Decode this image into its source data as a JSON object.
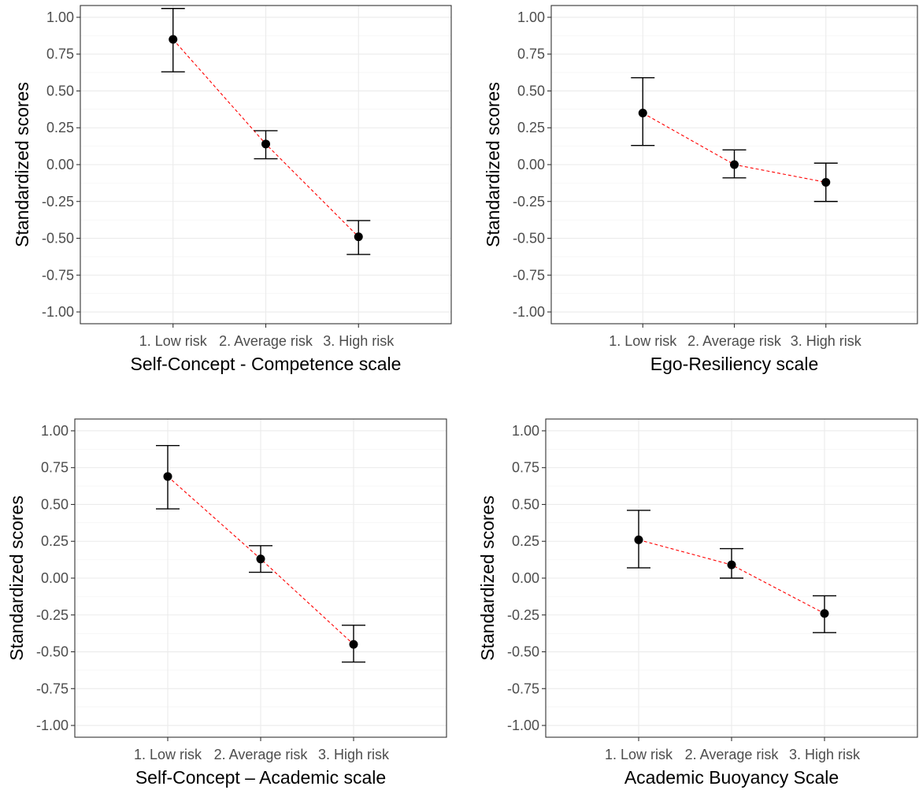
{
  "chart_data": [
    {
      "type": "scatter",
      "xlabel": "Self-Concept - Competence scale",
      "ylabel": "Standardized scores",
      "categories": [
        "1. Low risk",
        "2. Average risk",
        "3. High risk"
      ],
      "yticks": [
        "1.00",
        "0.75",
        "0.50",
        "0.25",
        "0.00",
        "-0.25",
        "-0.50",
        "-0.75",
        "-1.00"
      ],
      "ylim": [
        -1.08,
        1.08
      ],
      "grid": true,
      "connector": "dashed",
      "means": [
        0.85,
        0.14,
        -0.49
      ],
      "lower": [
        0.63,
        0.04,
        -0.61
      ],
      "upper": [
        1.06,
        0.23,
        -0.38
      ]
    },
    {
      "type": "scatter",
      "xlabel": "Ego-Resiliency scale",
      "ylabel": "Standardized scores",
      "categories": [
        "1. Low risk",
        "2. Average risk",
        "3. High risk"
      ],
      "yticks": [
        "1.00",
        "0.75",
        "0.50",
        "0.25",
        "0.00",
        "-0.25",
        "-0.50",
        "-0.75",
        "-1.00"
      ],
      "ylim": [
        -1.08,
        1.08
      ],
      "grid": true,
      "connector": "dashed",
      "means": [
        0.35,
        0.0,
        -0.12
      ],
      "lower": [
        0.13,
        -0.09,
        -0.25
      ],
      "upper": [
        0.59,
        0.1,
        0.01
      ]
    },
    {
      "type": "scatter",
      "xlabel": "Self-Concept – Academic scale",
      "ylabel": "Standardized scores",
      "categories": [
        "1. Low risk",
        "2. Average risk",
        "3. High risk"
      ],
      "yticks": [
        "1.00",
        "0.75",
        "0.50",
        "0.25",
        "0.00",
        "-0.25",
        "-0.50",
        "-0.75",
        "-1.00"
      ],
      "ylim": [
        -1.08,
        1.08
      ],
      "grid": true,
      "connector": "dashed",
      "means": [
        0.69,
        0.13,
        -0.45
      ],
      "lower": [
        0.47,
        0.04,
        -0.57
      ],
      "upper": [
        0.9,
        0.22,
        -0.32
      ]
    },
    {
      "type": "scatter",
      "xlabel": "Academic Buoyancy Scale",
      "ylabel": "Standardized scores",
      "categories": [
        "1. Low risk",
        "2. Average risk",
        "3. High risk"
      ],
      "yticks": [
        "1.00",
        "0.75",
        "0.50",
        "0.25",
        "0.00",
        "-0.25",
        "-0.50",
        "-0.75",
        "-1.00"
      ],
      "ylim": [
        -1.08,
        1.08
      ],
      "grid": true,
      "connector": "dashed",
      "means": [
        0.26,
        0.09,
        -0.24
      ],
      "lower": [
        0.07,
        0.0,
        -0.37
      ],
      "upper": [
        0.46,
        0.2,
        -0.12
      ]
    }
  ],
  "colors": {
    "connector": "#ff0000",
    "points": "#000000",
    "error_bars": "#000000",
    "grid": "#ebebeb",
    "tick_text": "#4d4d4d"
  }
}
